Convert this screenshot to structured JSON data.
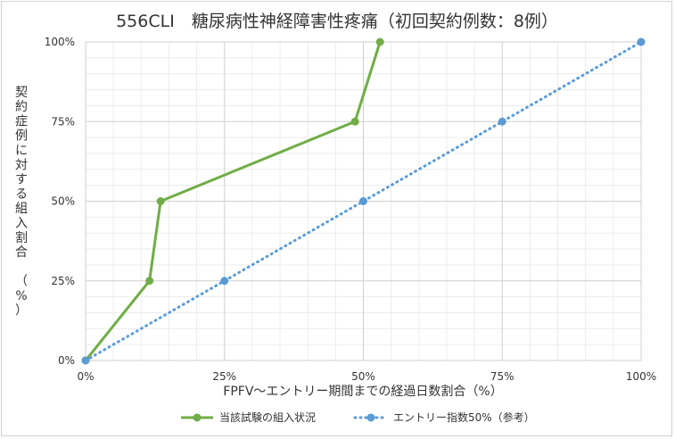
{
  "chart_data": {
    "type": "line",
    "title": "556CLI　糖尿病性神経障害性疼痛（初回契約例数：8例）",
    "xlabel": "FPFV～エントリー期間までの経過日数割合（%）",
    "ylabel": "契約症例に対する組入割合　（%）",
    "xlim": [
      0,
      100
    ],
    "ylim": [
      0,
      100
    ],
    "x_ticks": [
      "0%",
      "25%",
      "50%",
      "75%",
      "100%"
    ],
    "y_ticks": [
      "0%",
      "25%",
      "50%",
      "75%",
      "100%"
    ],
    "grid": true,
    "legend_position": "bottom",
    "series": [
      {
        "name": "当該試験の組入状況",
        "color": "#70ad47",
        "style": "solid",
        "points": [
          [
            0,
            0
          ],
          [
            11.5,
            25
          ],
          [
            13.5,
            50
          ],
          [
            48.5,
            75
          ],
          [
            53,
            100
          ]
        ]
      },
      {
        "name": "エントリー指数50%（参考）",
        "color": "#5b9bd5",
        "style": "dotted",
        "points": [
          [
            0,
            0
          ],
          [
            25,
            25
          ],
          [
            50,
            50
          ],
          [
            75,
            75
          ],
          [
            100,
            100
          ]
        ]
      }
    ]
  }
}
